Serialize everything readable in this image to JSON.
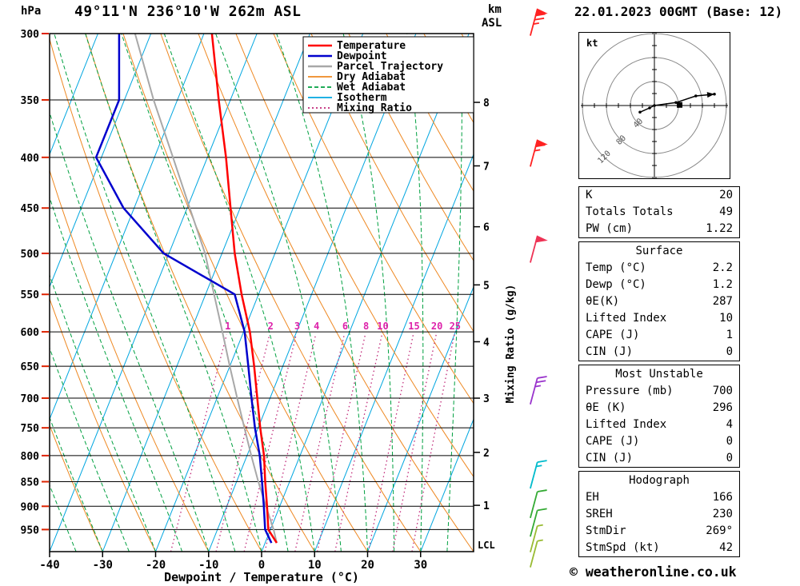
{
  "header": {
    "pressure_unit": "hPa",
    "station": "49°11'N 236°10'W 262m ASL",
    "altitude_unit_top": "km",
    "altitude_unit_bottom": "ASL",
    "datetime": "22.01.2023 00GMT (Base: 12)"
  },
  "axes": {
    "pressure_ticks": [
      300,
      350,
      400,
      450,
      500,
      550,
      600,
      650,
      700,
      750,
      800,
      850,
      900,
      950
    ],
    "temp_ticks": [
      -40,
      -30,
      -20,
      -10,
      0,
      10,
      20,
      30
    ],
    "km_ticks": [
      8,
      7,
      6,
      5,
      4,
      3,
      2,
      1
    ],
    "lcl_label": "LCL",
    "xlabel": "Dewpoint / Temperature (°C)",
    "mixing_axis_label": "Mixing Ratio (g/kg)"
  },
  "colors": {
    "temperature": "#ff0000",
    "dewpoint": "#0000cd",
    "parcel": "#a8a8a8",
    "dry_adiabat": "#ee8822",
    "wet_adiabat": "#00a040",
    "isotherm": "#00a6e0",
    "mixing_ratio": "#c02878",
    "mixing_label": "#dd22aa",
    "grid": "#000000",
    "left_tick": "#dd2200"
  },
  "legend": [
    {
      "label": "Temperature",
      "color": "#ff0000",
      "style": "solid"
    },
    {
      "label": "Dewpoint",
      "color": "#0000cd",
      "style": "solid"
    },
    {
      "label": "Parcel Trajectory",
      "color": "#a8a8a8",
      "style": "solid"
    },
    {
      "label": "Dry Adiabat",
      "color": "#ee8822",
      "style": "solid"
    },
    {
      "label": "Wet Adiabat",
      "color": "#00a040",
      "style": "dashed"
    },
    {
      "label": "Isotherm",
      "color": "#00a6e0",
      "style": "solid"
    },
    {
      "label": "Mixing Ratio",
      "color": "#c02878",
      "style": "dotted"
    }
  ],
  "chart_data": {
    "type": "line",
    "variant": "skew-t-log-p-sounding",
    "title": "49°11'N 236°10'W 262m ASL",
    "xlabel": "Dewpoint / Temperature (°C)",
    "x_range_c": [
      -40,
      40
    ],
    "pressure_range_hpa": [
      1000,
      300
    ],
    "grid": "on",
    "legend_position": "top-right",
    "mixing_ratio_values_gkg": [
      1,
      2,
      3,
      4,
      6,
      8,
      10,
      15,
      20,
      25
    ],
    "series": [
      {
        "name": "Temperature",
        "pressure_hpa": [
          980,
          950,
          900,
          850,
          800,
          750,
          700,
          650,
          600,
          550,
          500,
          450,
          400,
          350,
          300
        ],
        "temp_c": [
          2.2,
          -0.4,
          -2.4,
          -4.6,
          -6.8,
          -9.6,
          -12.4,
          -15.4,
          -18.8,
          -23.2,
          -27.6,
          -31.8,
          -36.5,
          -42.2,
          -48.5
        ]
      },
      {
        "name": "Dewpoint",
        "pressure_hpa": [
          980,
          950,
          900,
          850,
          800,
          750,
          700,
          650,
          600,
          550,
          500,
          450,
          400,
          350,
          300
        ],
        "temp_c": [
          1.2,
          -1.0,
          -3.0,
          -5.2,
          -7.6,
          -10.6,
          -13.5,
          -16.5,
          -19.8,
          -24.5,
          -41.0,
          -52.0,
          -61.0,
          -61.0,
          -66.0
        ]
      },
      {
        "name": "Parcel Trajectory",
        "pressure_hpa": [
          980,
          950,
          900,
          850,
          800,
          750,
          700,
          650,
          600,
          550,
          500,
          450,
          400,
          350,
          300
        ],
        "temp_c": [
          2.2,
          0.6,
          -2.6,
          -5.9,
          -9.2,
          -12.6,
          -16.2,
          -20.0,
          -24.0,
          -28.4,
          -33.2,
          -39.5,
          -46.5,
          -54.5,
          -63.0
        ]
      }
    ]
  },
  "wind_barbs": [
    {
      "pressure_hpa": 295,
      "speed_kt": 75,
      "color": "#ff2222"
    },
    {
      "pressure_hpa": 400,
      "speed_kt": 65,
      "color": "#ff2222"
    },
    {
      "pressure_hpa": 500,
      "speed_kt": 50,
      "color": "#ee3355"
    },
    {
      "pressure_hpa": 695,
      "speed_kt": 25,
      "color": "#9933cc"
    },
    {
      "pressure_hpa": 845,
      "speed_kt": 15,
      "color": "#00bbcc"
    },
    {
      "pressure_hpa": 905,
      "speed_kt": 10,
      "color": "#33aa33"
    },
    {
      "pressure_hpa": 945,
      "speed_kt": 10,
      "color": "#33aa33"
    },
    {
      "pressure_hpa": 980,
      "speed_kt": 5,
      "color": "#99bb33"
    },
    {
      "pressure_hpa": 1015,
      "speed_kt": 5,
      "color": "#99bb33"
    }
  ],
  "hodograph": {
    "unit_label": "kt",
    "circles_kt": [
      40,
      80,
      120
    ],
    "trace_kt": [
      [
        -24,
        -11
      ],
      [
        -8,
        -4
      ],
      [
        0,
        0
      ],
      [
        36,
        5
      ],
      [
        69,
        16
      ],
      [
        100,
        19
      ]
    ],
    "storm_motion_kt": [
      42,
      1
    ]
  },
  "panel": {
    "tables": [
      {
        "title": null,
        "rows": [
          [
            "K",
            "20"
          ],
          [
            "Totals Totals",
            "49"
          ],
          [
            "PW (cm)",
            "1.22"
          ]
        ]
      },
      {
        "title": "Surface",
        "rows": [
          [
            "Temp (°C)",
            "2.2"
          ],
          [
            "Dewp (°C)",
            "1.2"
          ],
          [
            "θE(K)",
            "287"
          ],
          [
            "Lifted Index",
            "10"
          ],
          [
            "CAPE (J)",
            "1"
          ],
          [
            "CIN (J)",
            "0"
          ]
        ]
      },
      {
        "title": "Most Unstable",
        "rows": [
          [
            "Pressure (mb)",
            "700"
          ],
          [
            "θE (K)",
            "296"
          ],
          [
            "Lifted Index",
            "4"
          ],
          [
            "CAPE (J)",
            "0"
          ],
          [
            "CIN (J)",
            "0"
          ]
        ]
      },
      {
        "title": "Hodograph",
        "rows": [
          [
            "EH",
            "166"
          ],
          [
            "SREH",
            "230"
          ],
          [
            "StmDir",
            "269°"
          ],
          [
            "StmSpd (kt)",
            "42"
          ]
        ]
      }
    ]
  },
  "footer": "© weatheronline.co.uk"
}
